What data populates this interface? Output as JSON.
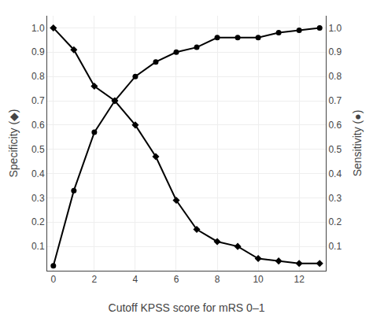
{
  "chart_data": {
    "type": "line",
    "xlabel": "Cutoff KPSS score for mRS 0–1",
    "ylabel": "Specificity (◆)",
    "y2label": "Sensitivity (●)",
    "x": [
      0,
      1,
      2,
      3,
      4,
      5,
      6,
      7,
      8,
      9,
      10,
      11,
      12,
      13
    ],
    "series": [
      {
        "color": "#000000",
        "marker": "diamond",
        "axis": "y",
        "values": [
          1.0,
          0.91,
          0.76,
          0.7,
          0.6,
          0.47,
          0.29,
          0.17,
          0.12,
          0.1,
          0.05,
          0.04,
          0.03,
          0.03
        ]
      },
      {
        "color": "#000000",
        "marker": "circle",
        "axis": "y2",
        "values": [
          0.02,
          0.33,
          0.57,
          0.7,
          0.8,
          0.86,
          0.9,
          0.92,
          0.96,
          0.96,
          0.96,
          0.98,
          0.99,
          1.0
        ]
      }
    ],
    "xlim": [
      -0.3,
      13.3
    ],
    "xticks": [
      0,
      2,
      4,
      6,
      8,
      10,
      12
    ],
    "ylim": [
      0.0,
      1.05
    ],
    "yticks": [
      0.1,
      0.2,
      0.3,
      0.4,
      0.5,
      0.6,
      0.7,
      0.8,
      0.9,
      {
        "value": 1.0,
        "label": "1.0"
      }
    ],
    "y2lim": [
      0.0,
      1.05
    ],
    "y2ticks": [
      0.1,
      0.2,
      0.3,
      0.4,
      0.5,
      0.6,
      0.7,
      0.8,
      0.9,
      {
        "value": 1.0,
        "label": "1.0"
      }
    ],
    "grid": true
  }
}
